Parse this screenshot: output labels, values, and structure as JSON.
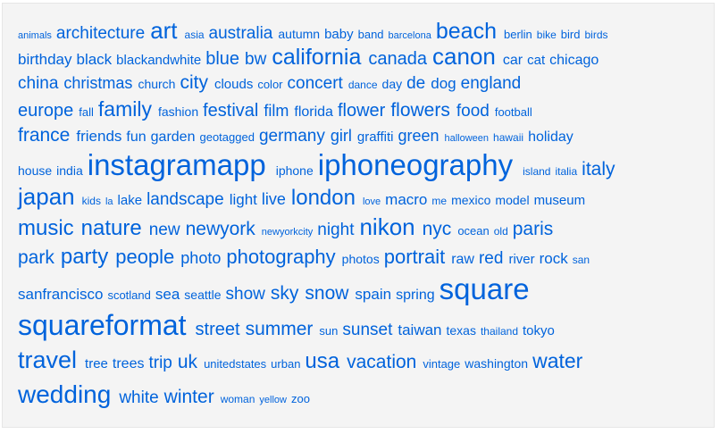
{
  "page": {
    "link_color": "#0063dc",
    "background": "#f4f4f4"
  },
  "tag_cloud": {
    "lines": [
      {
        "tags": [
          {
            "label": "animals",
            "size": 11
          },
          {
            "label": "architecture",
            "size": 19
          },
          {
            "label": "art",
            "size": 26
          },
          {
            "label": "asia",
            "size": 12
          },
          {
            "label": "australia",
            "size": 19
          },
          {
            "label": "autumn",
            "size": 14
          },
          {
            "label": "baby",
            "size": 15
          },
          {
            "label": "band",
            "size": 13
          },
          {
            "label": "barcelona",
            "size": 11
          },
          {
            "label": "beach",
            "size": 25
          },
          {
            "label": "berlin",
            "size": 13
          },
          {
            "label": "bike",
            "size": 12
          },
          {
            "label": "bird",
            "size": 13
          },
          {
            "label": "birds",
            "size": 12
          }
        ]
      },
      {
        "tags": [
          {
            "label": "birthday",
            "size": 17
          },
          {
            "label": "black",
            "size": 17
          },
          {
            "label": "blackandwhite",
            "size": 15
          },
          {
            "label": "blue",
            "size": 20
          },
          {
            "label": "bw",
            "size": 19
          },
          {
            "label": "california",
            "size": 25
          },
          {
            "label": "canada",
            "size": 20
          },
          {
            "label": "canon",
            "size": 26
          },
          {
            "label": "car",
            "size": 16
          },
          {
            "label": "cat",
            "size": 15
          },
          {
            "label": "chicago",
            "size": 16
          }
        ]
      },
      {
        "tags": [
          {
            "label": "china",
            "size": 19
          },
          {
            "label": "christmas",
            "size": 18
          },
          {
            "label": "church",
            "size": 14
          },
          {
            "label": "city",
            "size": 21
          },
          {
            "label": "clouds",
            "size": 15
          },
          {
            "label": "color",
            "size": 13
          },
          {
            "label": "concert",
            "size": 19
          },
          {
            "label": "dance",
            "size": 12
          },
          {
            "label": "day",
            "size": 14
          },
          {
            "label": "de",
            "size": 19
          },
          {
            "label": "dog",
            "size": 17
          },
          {
            "label": "england",
            "size": 19
          }
        ]
      },
      {
        "tags": [
          {
            "label": "europe",
            "size": 20
          },
          {
            "label": "fall",
            "size": 13
          },
          {
            "label": "family",
            "size": 23
          },
          {
            "label": "fashion",
            "size": 14
          },
          {
            "label": "festival",
            "size": 20
          },
          {
            "label": "film",
            "size": 18
          },
          {
            "label": "florida",
            "size": 16
          },
          {
            "label": "flower",
            "size": 20
          },
          {
            "label": "flowers",
            "size": 21
          },
          {
            "label": "food",
            "size": 19
          },
          {
            "label": "football",
            "size": 13
          }
        ]
      },
      {
        "tags": [
          {
            "label": "france",
            "size": 21
          },
          {
            "label": "friends",
            "size": 17
          },
          {
            "label": "fun",
            "size": 16
          },
          {
            "label": "garden",
            "size": 16
          },
          {
            "label": "geotagged",
            "size": 13
          },
          {
            "label": "germany",
            "size": 19
          },
          {
            "label": "girl",
            "size": 18
          },
          {
            "label": "graffiti",
            "size": 15
          },
          {
            "label": "green",
            "size": 18
          },
          {
            "label": "halloween",
            "size": 11
          },
          {
            "label": "hawaii",
            "size": 12
          },
          {
            "label": "holiday",
            "size": 16
          }
        ]
      },
      {
        "tags": [
          {
            "label": "house",
            "size": 14
          },
          {
            "label": "india",
            "size": 14
          },
          {
            "label": "instagramapp",
            "size": 33
          },
          {
            "label": "iphone",
            "size": 14
          },
          {
            "label": "iphoneography",
            "size": 33
          },
          {
            "label": "island",
            "size": 12
          },
          {
            "label": "italia",
            "size": 12
          },
          {
            "label": "italy",
            "size": 21
          }
        ]
      },
      {
        "tags": [
          {
            "label": "japan",
            "size": 26
          },
          {
            "label": "kids",
            "size": 12
          },
          {
            "label": "la",
            "size": 11
          },
          {
            "label": "lake",
            "size": 15
          },
          {
            "label": "landscape",
            "size": 19
          },
          {
            "label": "light",
            "size": 17
          },
          {
            "label": "live",
            "size": 18
          },
          {
            "label": "london",
            "size": 24
          },
          {
            "label": "love",
            "size": 11
          },
          {
            "label": "macro",
            "size": 17
          },
          {
            "label": "me",
            "size": 12
          },
          {
            "label": "mexico",
            "size": 14
          },
          {
            "label": "model",
            "size": 14
          },
          {
            "label": "museum",
            "size": 15
          }
        ]
      },
      {
        "tags": [
          {
            "label": "music",
            "size": 24
          },
          {
            "label": "nature",
            "size": 24
          },
          {
            "label": "new",
            "size": 19
          },
          {
            "label": "newyork",
            "size": 21
          },
          {
            "label": "newyorkcity",
            "size": 11
          },
          {
            "label": "night",
            "size": 19
          },
          {
            "label": "nikon",
            "size": 26
          },
          {
            "label": "nyc",
            "size": 21
          },
          {
            "label": "ocean",
            "size": 13
          },
          {
            "label": "old",
            "size": 12
          },
          {
            "label": "paris",
            "size": 21
          }
        ]
      },
      {
        "tags": [
          {
            "label": "park",
            "size": 21
          },
          {
            "label": "party",
            "size": 24
          },
          {
            "label": "people",
            "size": 22
          },
          {
            "label": "photo",
            "size": 18
          },
          {
            "label": "photography",
            "size": 22
          },
          {
            "label": "photos",
            "size": 14
          },
          {
            "label": "portrait",
            "size": 22
          },
          {
            "label": "raw",
            "size": 16
          },
          {
            "label": "red",
            "size": 19
          },
          {
            "label": "river",
            "size": 15
          },
          {
            "label": "rock",
            "size": 17
          },
          {
            "label": "san",
            "size": 12
          }
        ]
      },
      {
        "tags": [
          {
            "label": "sanfrancisco",
            "size": 17
          },
          {
            "label": "scotland",
            "size": 13
          },
          {
            "label": "sea",
            "size": 17
          },
          {
            "label": "seattle",
            "size": 14
          },
          {
            "label": "show",
            "size": 19
          },
          {
            "label": "sky",
            "size": 21
          },
          {
            "label": "snow",
            "size": 21
          },
          {
            "label": "spain",
            "size": 17
          },
          {
            "label": "spring",
            "size": 16
          },
          {
            "label": "square",
            "size": 33
          }
        ]
      },
      {
        "tags": [
          {
            "label": "squareformat",
            "size": 32
          },
          {
            "label": "street",
            "size": 20
          },
          {
            "label": "summer",
            "size": 21
          },
          {
            "label": "sun",
            "size": 13
          },
          {
            "label": "sunset",
            "size": 19
          },
          {
            "label": "taiwan",
            "size": 17
          },
          {
            "label": "texas",
            "size": 14
          },
          {
            "label": "thailand",
            "size": 12
          },
          {
            "label": "tokyo",
            "size": 15
          }
        ]
      },
      {
        "tags": [
          {
            "label": "travel",
            "size": 27
          },
          {
            "label": "tree",
            "size": 15
          },
          {
            "label": "trees",
            "size": 16
          },
          {
            "label": "trip",
            "size": 19
          },
          {
            "label": "uk",
            "size": 21
          },
          {
            "label": "unitedstates",
            "size": 13
          },
          {
            "label": "urban",
            "size": 13
          },
          {
            "label": "usa",
            "size": 24
          },
          {
            "label": "vacation",
            "size": 21
          },
          {
            "label": "vintage",
            "size": 13
          },
          {
            "label": "washington",
            "size": 14
          },
          {
            "label": "water",
            "size": 23
          }
        ]
      },
      {
        "tags": [
          {
            "label": "wedding",
            "size": 28
          },
          {
            "label": "white",
            "size": 19
          },
          {
            "label": "winter",
            "size": 21
          },
          {
            "label": "woman",
            "size": 12
          },
          {
            "label": "yellow",
            "size": 11
          },
          {
            "label": "zoo",
            "size": 13
          }
        ]
      }
    ]
  }
}
